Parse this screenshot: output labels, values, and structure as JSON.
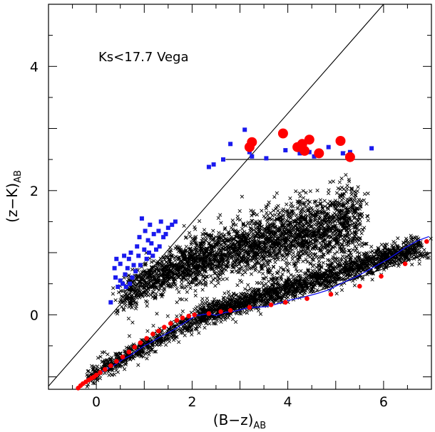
{
  "chart_data": {
    "type": "scatter",
    "title": "",
    "annotation": "Ks<17.7 Vega",
    "xlabel": {
      "main": "(B−z)",
      "sub": "AB"
    },
    "ylabel": {
      "main": "(z−K)",
      "sub": "AB"
    },
    "xlim": [
      -1.0,
      7.0
    ],
    "ylim": [
      -1.2,
      5.0
    ],
    "xticks_major": [
      0,
      2,
      4,
      6
    ],
    "yticks_major": [
      0,
      2,
      4
    ],
    "minor_tick_step": 0.5,
    "grid": false,
    "legend": "none",
    "colors": {
      "stars": "#000000",
      "star_track": "#1010ee",
      "track_points": "#ff0000",
      "blue_points": "#1a1aee",
      "red_points": "#ff0000",
      "lines": "#000000"
    },
    "lines": [
      {
        "name": "",
        "x": [
          -1.0,
          6.0
        ],
        "y": [
          -1.15,
          5.0
        ]
      },
      {
        "name": "",
        "x": [
          2.7,
          7.0
        ],
        "y": [
          2.5,
          2.5
        ]
      },
      {
        "name": "",
        "x": [
          4.5,
          7.0
        ],
        "y": [
          0.35,
          1.0
        ]
      }
    ],
    "star_track": {
      "x": [
        -0.38,
        -0.3,
        -0.2,
        -0.1,
        0.0,
        0.1,
        0.25,
        0.4,
        0.55,
        0.7,
        0.85,
        1.0,
        1.15,
        1.3,
        1.45,
        1.6,
        1.7,
        1.8,
        1.9,
        2.0,
        2.1,
        2.2,
        2.35,
        2.5,
        2.7,
        2.9,
        3.1,
        3.3,
        3.55,
        3.8,
        4.0,
        4.3,
        4.6,
        4.85,
        5.1,
        5.45,
        5.8,
        6.1,
        6.45,
        6.7,
        6.95
      ],
      "y": [
        -1.18,
        -1.12,
        -1.07,
        -1.03,
        -0.98,
        -0.93,
        -0.86,
        -0.8,
        -0.72,
        -0.66,
        -0.58,
        -0.5,
        -0.44,
        -0.37,
        -0.31,
        -0.25,
        -0.2,
        -0.15,
        -0.1,
        -0.05,
        -0.01,
        0.0,
        0.02,
        -0.01,
        0.04,
        0.06,
        0.1,
        0.12,
        0.13,
        0.18,
        0.23,
        0.28,
        0.34,
        0.4,
        0.5,
        0.62,
        0.77,
        0.9,
        1.08,
        1.19,
        1.26
      ]
    },
    "track_points": {
      "x": [
        -0.38,
        -0.33,
        -0.28,
        -0.22,
        -0.16,
        -0.1,
        -0.05,
        0.0,
        0.08,
        0.18,
        0.3,
        0.42,
        0.55,
        0.68,
        0.8,
        0.92,
        1.05,
        1.18,
        1.3,
        1.42,
        1.55,
        1.68,
        1.8,
        1.93,
        2.05,
        2.35,
        2.6,
        2.8,
        3.2,
        3.65,
        3.95,
        4.4,
        4.9,
        5.5,
        5.95,
        6.45,
        6.9
      ],
      "y": [
        -1.18,
        -1.14,
        -1.11,
        -1.08,
        -1.05,
        -1.02,
        -1.0,
        -0.97,
        -0.93,
        -0.88,
        -0.82,
        -0.75,
        -0.68,
        -0.6,
        -0.52,
        -0.45,
        -0.38,
        -0.31,
        -0.26,
        -0.2,
        -0.14,
        -0.09,
        -0.05,
        -0.02,
        0.0,
        0.02,
        0.05,
        0.07,
        0.12,
        0.16,
        0.2,
        0.26,
        0.33,
        0.46,
        0.62,
        0.82,
        1.18
      ]
    },
    "blue_points": {
      "x": [
        0.3,
        0.38,
        0.4,
        0.42,
        0.45,
        0.5,
        0.5,
        0.55,
        0.58,
        0.6,
        0.62,
        0.65,
        0.68,
        0.7,
        0.72,
        0.75,
        0.78,
        0.82,
        0.85,
        0.88,
        0.9,
        0.92,
        0.95,
        1.0,
        1.02,
        1.05,
        1.08,
        1.1,
        1.12,
        1.15,
        1.18,
        1.2,
        1.25,
        1.3,
        1.32,
        1.35,
        1.4,
        1.45,
        1.5,
        1.58,
        1.65,
        2.35,
        2.45,
        2.65,
        2.8,
        3.1,
        3.2,
        3.25,
        3.55,
        3.95,
        4.25,
        4.45,
        4.55,
        4.85,
        5.15,
        5.3,
        5.75
      ],
      "y": [
        0.2,
        0.75,
        0.6,
        0.9,
        0.45,
        0.55,
        0.82,
        0.5,
        0.95,
        0.65,
        0.45,
        0.75,
        0.9,
        0.5,
        1.0,
        0.6,
        0.8,
        0.7,
        1.1,
        0.95,
        1.25,
        0.8,
        1.55,
        1.05,
        1.35,
        0.9,
        1.2,
        1.0,
        1.45,
        1.15,
        0.95,
        1.3,
        1.05,
        1.35,
        1.1,
        1.5,
        1.25,
        1.3,
        1.4,
        1.45,
        1.5,
        2.38,
        2.42,
        2.5,
        2.75,
        2.98,
        2.62,
        2.55,
        2.52,
        2.65,
        2.6,
        2.62,
        2.55,
        2.7,
        2.6,
        2.62,
        2.68
      ]
    },
    "red_points": {
      "x": [
        3.2,
        3.25,
        3.9,
        4.2,
        4.3,
        4.35,
        4.45,
        4.65,
        5.1,
        5.3
      ],
      "y": [
        2.7,
        2.78,
        2.92,
        2.7,
        2.75,
        2.64,
        2.82,
        2.6,
        2.8,
        2.54
      ]
    },
    "stars": {
      "count": 5400,
      "components": [
        {
          "name": "",
          "x_range": [
            0.5,
            5.5
          ],
          "y_at_x_start": 0.05,
          "y_at_x_end": 1.5,
          "approx_points": 3000
        },
        {
          "name": "",
          "x_range": [
            2.2,
            6.8
          ],
          "y_at_x_start": 0.0,
          "y_at_x_end": 1.1,
          "approx_points": 1800
        },
        {
          "name": "",
          "x_range": [
            -0.2,
            2.3
          ],
          "y_at_x_start": -1.0,
          "y_at_x_end": 0.0,
          "approx_points": 600
        }
      ]
    }
  }
}
